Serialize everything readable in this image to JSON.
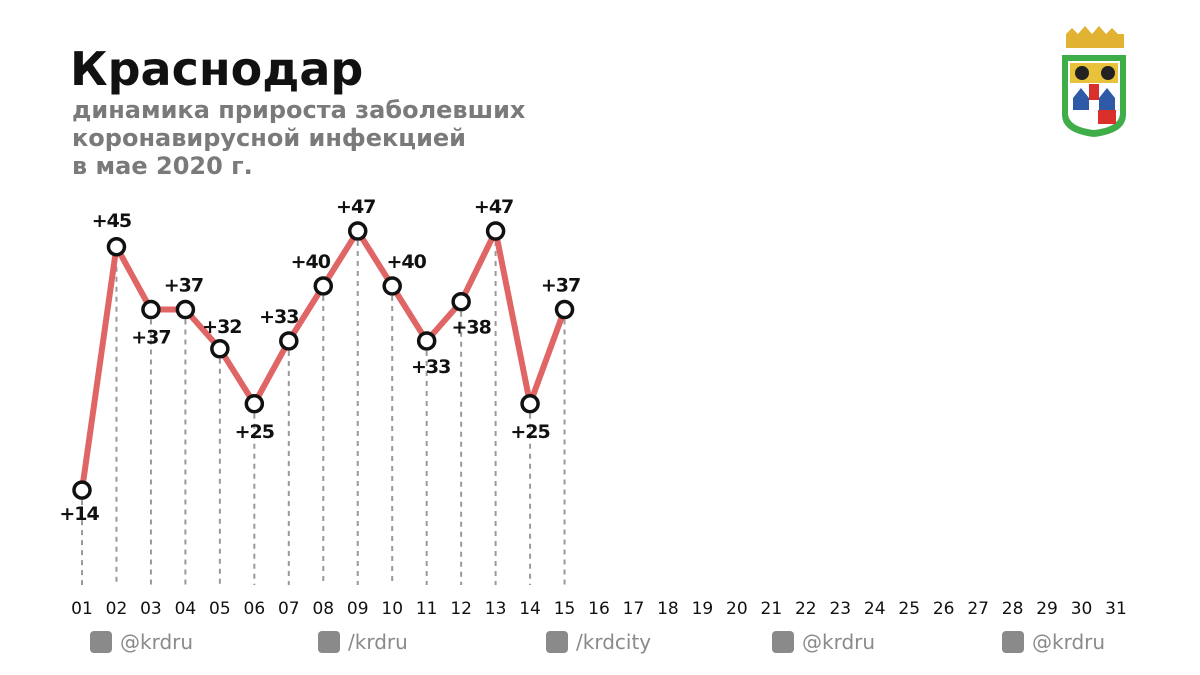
{
  "chart_data": {
    "type": "line",
    "title": "Краснодар",
    "subtitle": [
      "динамика прироста заболевших",
      "коронавирусной инфекцией",
      "в мае 2020 г."
    ],
    "categories": [
      "01",
      "02",
      "03",
      "04",
      "05",
      "06",
      "07",
      "08",
      "09",
      "10",
      "11",
      "12",
      "13",
      "14",
      "15",
      "16",
      "17",
      "18",
      "19",
      "20",
      "21",
      "22",
      "23",
      "24",
      "25",
      "26",
      "27",
      "28",
      "29",
      "30",
      "31"
    ],
    "series": [
      {
        "color": "#e06666",
        "values": [
          14,
          45,
          37,
          37,
          32,
          25,
          33,
          40,
          47,
          40,
          33,
          38,
          47,
          25,
          37,
          null,
          null,
          null,
          null,
          null,
          null,
          null,
          null,
          null,
          null,
          null,
          null,
          null,
          null,
          null,
          null
        ],
        "value_labels": [
          "+14",
          "+45",
          "+37",
          "+37",
          "+32",
          "+25",
          "+33",
          "+40",
          "+47",
          "+40",
          "+33",
          "+38",
          "+47",
          "+25",
          "+37",
          null,
          null,
          null,
          null,
          null,
          null,
          null,
          null,
          null,
          null,
          null,
          null,
          null,
          null,
          null,
          null
        ]
      }
    ]
  },
  "footer": {
    "handles": [
      "@krdru",
      "/krdru",
      "/krdcity",
      "@krdru",
      "@krdru"
    ]
  }
}
